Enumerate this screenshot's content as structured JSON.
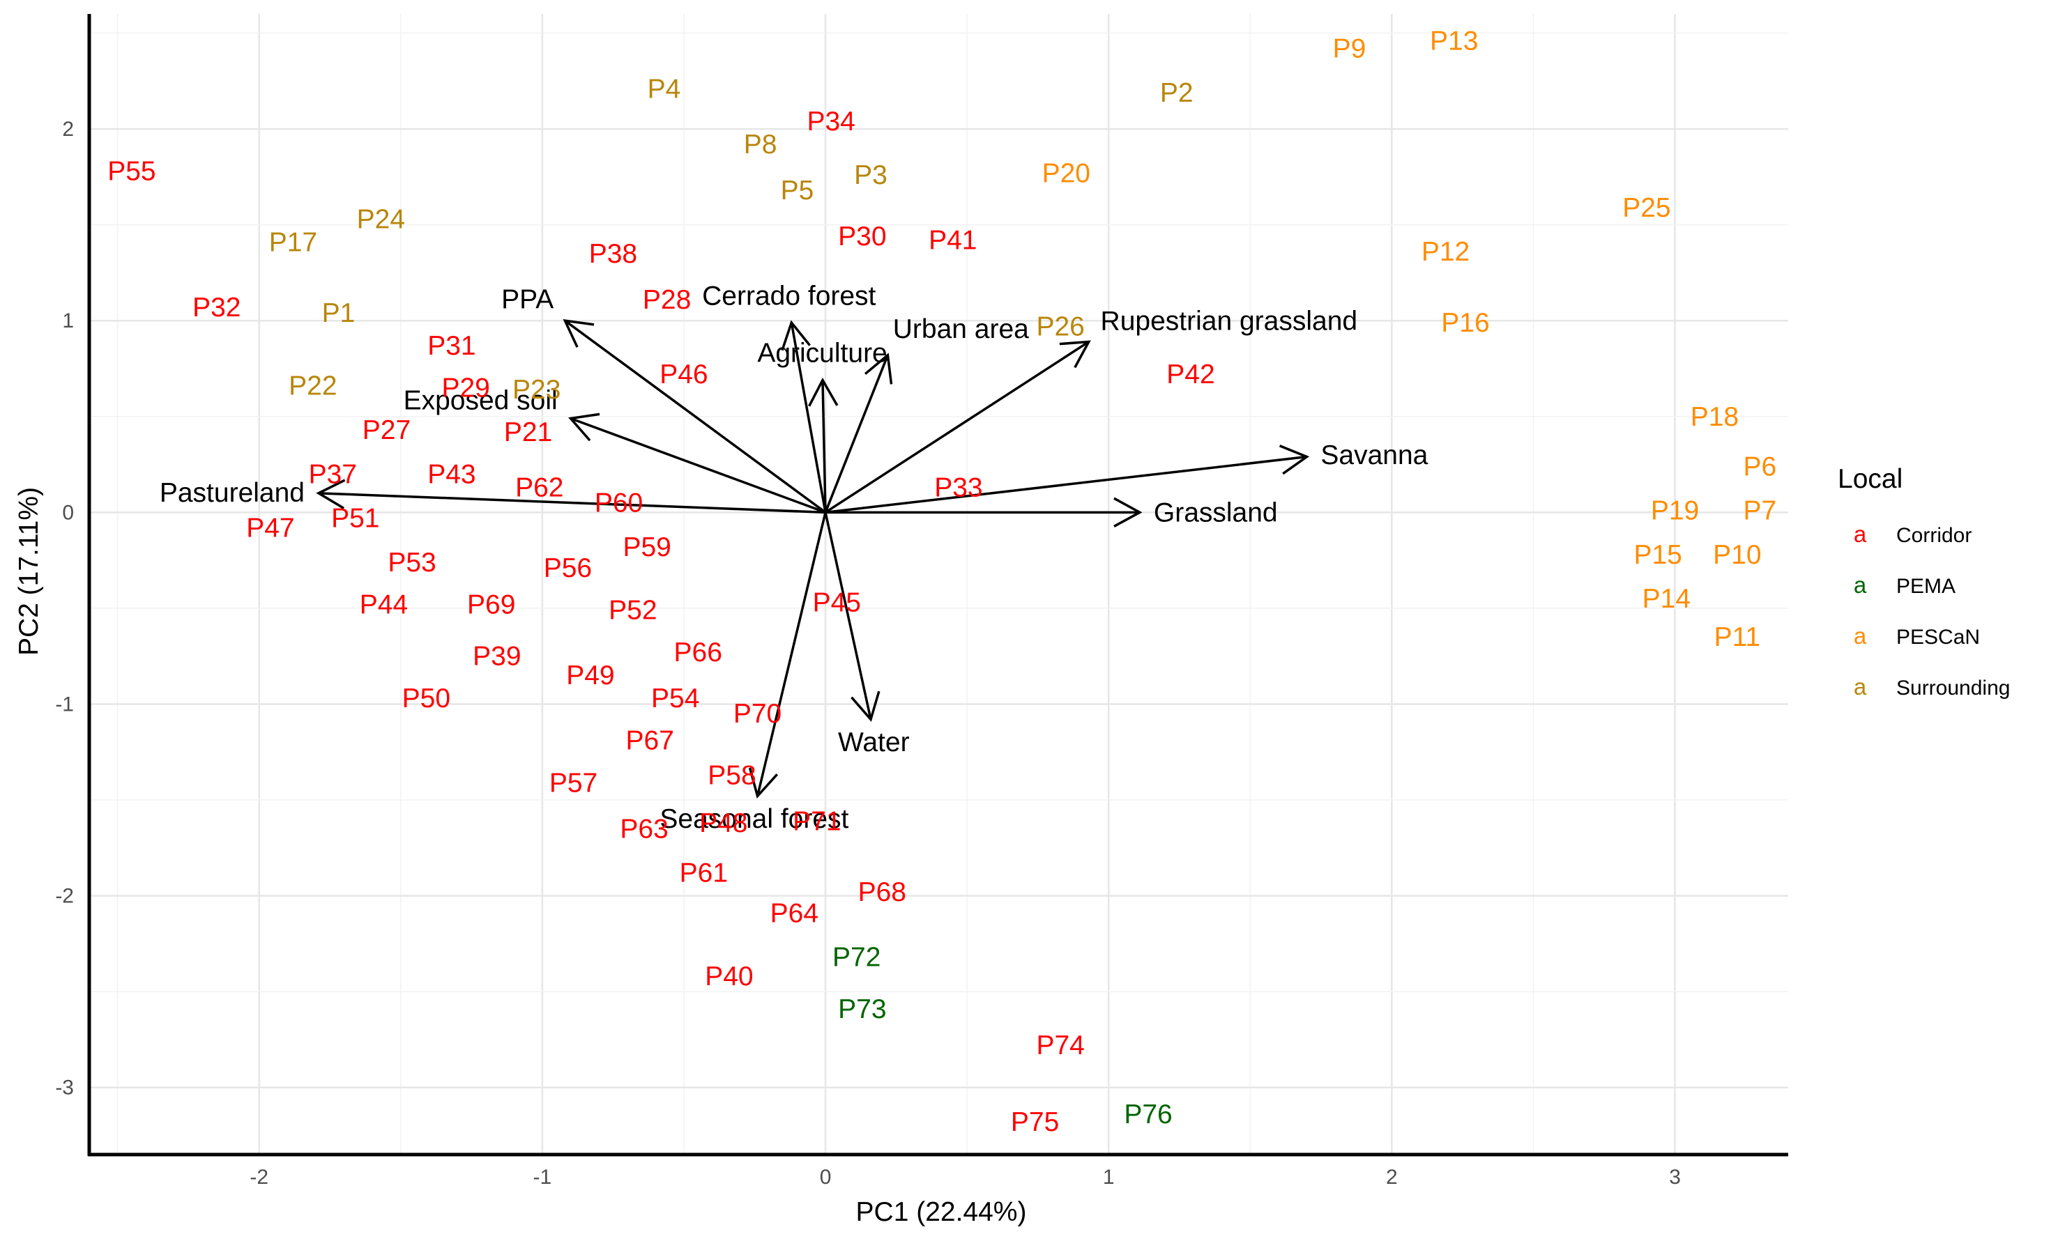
{
  "chart_data": {
    "type": "scatter",
    "title": "",
    "xlabel": "PC1 (22.44%)",
    "ylabel": "PC2 (17.11%)",
    "xlim": [
      -2.6,
      3.4
    ],
    "ylim": [
      -3.35,
      2.6
    ],
    "x_ticks": [
      "-2",
      "-1",
      "0",
      "1",
      "2",
      "3"
    ],
    "y_ticks": [
      "-3",
      "-2",
      "-1",
      "0",
      "1",
      "2"
    ],
    "grid": true,
    "legend": {
      "title": "Local",
      "placement": "right",
      "key_glyph": "a",
      "entries": [
        {
          "name": "Corridor",
          "color": "#ff0000"
        },
        {
          "name": "PEMA",
          "color": "#006400"
        },
        {
          "name": "PESCaN",
          "color": "#ff8c00"
        },
        {
          "name": "Surrounding",
          "color": "#b8860b"
        }
      ]
    },
    "points": [
      {
        "label": "P55",
        "group": "Corridor",
        "x": -2.45,
        "y": 1.78
      },
      {
        "label": "P32",
        "group": "Corridor",
        "x": -2.15,
        "y": 1.07
      },
      {
        "label": "P34",
        "group": "Corridor",
        "x": 0.02,
        "y": 2.04
      },
      {
        "label": "P30",
        "group": "Corridor",
        "x": 0.13,
        "y": 1.44
      },
      {
        "label": "P38",
        "group": "Corridor",
        "x": -0.75,
        "y": 1.35
      },
      {
        "label": "P41",
        "group": "Corridor",
        "x": 0.45,
        "y": 1.42
      },
      {
        "label": "P28",
        "group": "Corridor",
        "x": -0.56,
        "y": 1.11
      },
      {
        "label": "P31",
        "group": "Corridor",
        "x": -1.32,
        "y": 0.87
      },
      {
        "label": "P46",
        "group": "Corridor",
        "x": -0.5,
        "y": 0.72
      },
      {
        "label": "P42",
        "group": "Corridor",
        "x": 1.29,
        "y": 0.72
      },
      {
        "label": "P29",
        "group": "Corridor",
        "x": -1.27,
        "y": 0.65
      },
      {
        "label": "P27",
        "group": "Corridor",
        "x": -1.55,
        "y": 0.43
      },
      {
        "label": "P21",
        "group": "Corridor",
        "x": -1.05,
        "y": 0.42
      },
      {
        "label": "P37",
        "group": "Corridor",
        "x": -1.74,
        "y": 0.2
      },
      {
        "label": "P43",
        "group": "Corridor",
        "x": -1.32,
        "y": 0.2
      },
      {
        "label": "P62",
        "group": "Corridor",
        "x": -1.01,
        "y": 0.13
      },
      {
        "label": "P33",
        "group": "Corridor",
        "x": 0.47,
        "y": 0.13
      },
      {
        "label": "P60",
        "group": "Corridor",
        "x": -0.73,
        "y": 0.05
      },
      {
        "label": "P51",
        "group": "Corridor",
        "x": -1.66,
        "y": -0.03
      },
      {
        "label": "P47",
        "group": "Corridor",
        "x": -1.96,
        "y": -0.08
      },
      {
        "label": "P59",
        "group": "Corridor",
        "x": -0.63,
        "y": -0.18
      },
      {
        "label": "P53",
        "group": "Corridor",
        "x": -1.46,
        "y": -0.26
      },
      {
        "label": "P56",
        "group": "Corridor",
        "x": -0.91,
        "y": -0.29
      },
      {
        "label": "P45",
        "group": "Corridor",
        "x": 0.04,
        "y": -0.47
      },
      {
        "label": "P44",
        "group": "Corridor",
        "x": -1.56,
        "y": -0.48
      },
      {
        "label": "P69",
        "group": "Corridor",
        "x": -1.18,
        "y": -0.48
      },
      {
        "label": "P52",
        "group": "Corridor",
        "x": -0.68,
        "y": -0.51
      },
      {
        "label": "P66",
        "group": "Corridor",
        "x": -0.45,
        "y": -0.73
      },
      {
        "label": "P39",
        "group": "Corridor",
        "x": -1.16,
        "y": -0.75
      },
      {
        "label": "P49",
        "group": "Corridor",
        "x": -0.83,
        "y": -0.85
      },
      {
        "label": "P50",
        "group": "Corridor",
        "x": -1.41,
        "y": -0.97
      },
      {
        "label": "P54",
        "group": "Corridor",
        "x": -0.53,
        "y": -0.97
      },
      {
        "label": "P70",
        "group": "Corridor",
        "x": -0.24,
        "y": -1.05
      },
      {
        "label": "P67",
        "group": "Corridor",
        "x": -0.62,
        "y": -1.19
      },
      {
        "label": "P57",
        "group": "Corridor",
        "x": -0.89,
        "y": -1.41
      },
      {
        "label": "P58",
        "group": "Corridor",
        "x": -0.33,
        "y": -1.37
      },
      {
        "label": "P71",
        "group": "Corridor",
        "x": -0.03,
        "y": -1.61
      },
      {
        "label": "P48",
        "group": "Corridor",
        "x": -0.36,
        "y": -1.62
      },
      {
        "label": "P63",
        "group": "Corridor",
        "x": -0.64,
        "y": -1.65
      },
      {
        "label": "P61",
        "group": "Corridor",
        "x": -0.43,
        "y": -1.88
      },
      {
        "label": "P64",
        "group": "Corridor",
        "x": -0.11,
        "y": -2.09
      },
      {
        "label": "P68",
        "group": "Corridor",
        "x": 0.2,
        "y": -1.98
      },
      {
        "label": "P40",
        "group": "Corridor",
        "x": -0.34,
        "y": -2.42
      },
      {
        "label": "P74",
        "group": "Corridor",
        "x": 0.83,
        "y": -2.78
      },
      {
        "label": "P75",
        "group": "Corridor",
        "x": 0.74,
        "y": -3.18
      },
      {
        "label": "P72",
        "group": "PEMA",
        "x": 0.11,
        "y": -2.32
      },
      {
        "label": "P73",
        "group": "PEMA",
        "x": 0.13,
        "y": -2.59
      },
      {
        "label": "P76",
        "group": "PEMA",
        "x": 1.14,
        "y": -3.14
      },
      {
        "label": "P9",
        "group": "PESCaN",
        "x": 1.85,
        "y": 2.42
      },
      {
        "label": "P13",
        "group": "PESCaN",
        "x": 2.22,
        "y": 2.46
      },
      {
        "label": "P20",
        "group": "PESCaN",
        "x": 0.85,
        "y": 1.77
      },
      {
        "label": "P25",
        "group": "PESCaN",
        "x": 2.9,
        "y": 1.59
      },
      {
        "label": "P12",
        "group": "PESCaN",
        "x": 2.19,
        "y": 1.36
      },
      {
        "label": "P16",
        "group": "PESCaN",
        "x": 2.26,
        "y": 0.99
      },
      {
        "label": "P18",
        "group": "PESCaN",
        "x": 3.14,
        "y": 0.5
      },
      {
        "label": "P6",
        "group": "PESCaN",
        "x": 3.3,
        "y": 0.24
      },
      {
        "label": "P19",
        "group": "PESCaN",
        "x": 3.0,
        "y": 0.01
      },
      {
        "label": "P7",
        "group": "PESCaN",
        "x": 3.3,
        "y": 0.01
      },
      {
        "label": "P15",
        "group": "PESCaN",
        "x": 2.94,
        "y": -0.22
      },
      {
        "label": "P10",
        "group": "PESCaN",
        "x": 3.22,
        "y": -0.22
      },
      {
        "label": "P14",
        "group": "PESCaN",
        "x": 2.97,
        "y": -0.45
      },
      {
        "label": "P11",
        "group": "PESCaN",
        "x": 3.22,
        "y": -0.65
      },
      {
        "label": "P4",
        "group": "Surrounding",
        "x": -0.57,
        "y": 2.21
      },
      {
        "label": "P2",
        "group": "Surrounding",
        "x": 1.24,
        "y": 2.19
      },
      {
        "label": "P8",
        "group": "Surrounding",
        "x": -0.23,
        "y": 1.92
      },
      {
        "label": "P3",
        "group": "Surrounding",
        "x": 0.16,
        "y": 1.76
      },
      {
        "label": "P5",
        "group": "Surrounding",
        "x": -0.1,
        "y": 1.68
      },
      {
        "label": "P17",
        "group": "Surrounding",
        "x": -1.88,
        "y": 1.41
      },
      {
        "label": "P24",
        "group": "Surrounding",
        "x": -1.57,
        "y": 1.53
      },
      {
        "label": "P1",
        "group": "Surrounding",
        "x": -1.72,
        "y": 1.04
      },
      {
        "label": "P26",
        "group": "Surrounding",
        "x": 0.83,
        "y": 0.97
      },
      {
        "label": "P22",
        "group": "Surrounding",
        "x": -1.81,
        "y": 0.66
      },
      {
        "label": "P23",
        "group": "Surrounding",
        "x": -1.02,
        "y": 0.64
      }
    ],
    "vectors": [
      {
        "label": "Cerrado forest",
        "x": -0.12,
        "y": 0.99
      },
      {
        "label": "PPA",
        "x": -0.92,
        "y": 1.0
      },
      {
        "label": "Urban area",
        "x": 0.22,
        "y": 0.82
      },
      {
        "label": "Rupestrian grassland",
        "x": 0.93,
        "y": 0.89
      },
      {
        "label": "Exposed soil",
        "x": -0.9,
        "y": 0.49
      },
      {
        "label": "Agriculture",
        "x": -0.01,
        "y": 0.69
      },
      {
        "label": "Savanna",
        "x": 1.7,
        "y": 0.29
      },
      {
        "label": "Grassland",
        "x": 1.11,
        "y": 0.0
      },
      {
        "label": "Pastureland",
        "x": -1.79,
        "y": 0.1
      },
      {
        "label": "Water",
        "x": 0.16,
        "y": -1.08
      },
      {
        "label": "Seasonal forest",
        "x": -0.24,
        "y": -1.48
      }
    ]
  }
}
